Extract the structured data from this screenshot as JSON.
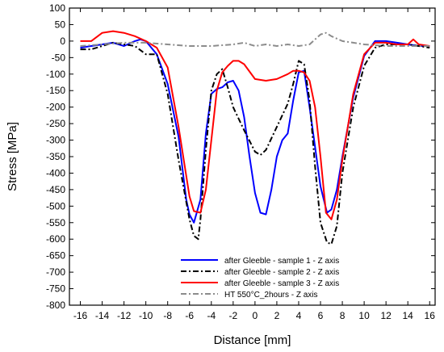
{
  "chart_data": {
    "type": "line",
    "title": "",
    "xlabel": "Distance [mm]",
    "ylabel": "Stress [MPa]",
    "xlim": [
      -17,
      16.5
    ],
    "ylim": [
      -800,
      100
    ],
    "xticks": [
      -16,
      -14,
      -12,
      -10,
      -8,
      -6,
      -4,
      -2,
      0,
      2,
      4,
      6,
      8,
      10,
      12,
      14,
      16
    ],
    "yticks": [
      100,
      50,
      0,
      -50,
      -100,
      -150,
      -200,
      -250,
      -300,
      -350,
      -400,
      -450,
      -500,
      -550,
      -600,
      -650,
      -700,
      -750,
      -800
    ],
    "grid": false,
    "legend_position": "bottom-center",
    "series": [
      {
        "name": "after Gleeble - sample 1 - Z axis",
        "color": "#0000ff",
        "dash": "solid",
        "x": [
          -16,
          -15,
          -14,
          -13,
          -12,
          -11,
          -10.5,
          -10,
          -9,
          -8,
          -7,
          -6.3,
          -6,
          -5.6,
          -5,
          -4.5,
          -4,
          -3.5,
          -3,
          -2.5,
          -2,
          -1.5,
          -1,
          -0.5,
          0,
          0.5,
          1,
          1.5,
          2,
          2.5,
          3,
          3.5,
          4,
          4.5,
          5,
          6,
          6.6,
          7,
          7.5,
          8,
          9,
          10,
          11,
          12,
          13,
          14,
          15,
          16
        ],
        "y": [
          -20,
          -15,
          -10,
          -5,
          -15,
          0,
          5,
          0,
          -40,
          -130,
          -290,
          -480,
          -525,
          -550,
          -480,
          -280,
          -160,
          -145,
          -140,
          -125,
          -120,
          -150,
          -230,
          -350,
          -460,
          -520,
          -525,
          -450,
          -350,
          -300,
          -280,
          -180,
          -95,
          -90,
          -200,
          -440,
          -520,
          -510,
          -450,
          -350,
          -170,
          -45,
          0,
          0,
          -5,
          -10,
          -15,
          -15
        ]
      },
      {
        "name": "after Gleeble - sample 2 - Z axis",
        "color": "#000000",
        "dash": "dashdot",
        "x": [
          -16,
          -15,
          -14,
          -13,
          -12,
          -11,
          -10,
          -9,
          -8,
          -7,
          -6,
          -5.6,
          -5.2,
          -5,
          -4.5,
          -4,
          -3.5,
          -3,
          -2.5,
          -2,
          -1,
          0,
          0.5,
          1,
          2,
          3,
          3.5,
          4,
          4.5,
          5,
          5.5,
          6,
          6.6,
          7,
          7.5,
          8,
          9,
          10,
          11,
          12,
          13,
          14,
          15,
          16
        ],
        "y": [
          -25,
          -25,
          -15,
          -5,
          -10,
          -15,
          -40,
          -40,
          -160,
          -360,
          -540,
          -590,
          -600,
          -540,
          -330,
          -150,
          -100,
          -85,
          -140,
          -200,
          -270,
          -335,
          -345,
          -330,
          -260,
          -190,
          -130,
          -60,
          -70,
          -180,
          -380,
          -550,
          -610,
          -615,
          -560,
          -400,
          -200,
          -75,
          -20,
          -10,
          -10,
          -10,
          -15,
          -20
        ]
      },
      {
        "name": "after Gleeble - sample 3 - Z axis",
        "color": "#ff0000",
        "dash": "solid",
        "x": [
          -16,
          -15,
          -14,
          -13,
          -12,
          -11,
          -10,
          -9,
          -8,
          -7,
          -6,
          -5.6,
          -5,
          -4.5,
          -4,
          -3.5,
          -3,
          -2.5,
          -2,
          -1.5,
          -1,
          0,
          1,
          2,
          3,
          3.5,
          4,
          4.5,
          5,
          5.5,
          6,
          6.5,
          7,
          7.5,
          8,
          9,
          10,
          11,
          12,
          13,
          14,
          14.5,
          15,
          16
        ],
        "y": [
          0,
          0,
          25,
          30,
          25,
          15,
          0,
          -20,
          -80,
          -260,
          -470,
          -515,
          -520,
          -450,
          -300,
          -150,
          -95,
          -75,
          -60,
          -60,
          -70,
          -115,
          -120,
          -115,
          -100,
          -90,
          -90,
          -95,
          -120,
          -200,
          -350,
          -520,
          -540,
          -480,
          -360,
          -160,
          -40,
          -5,
          -5,
          -10,
          -10,
          5,
          -10,
          -15
        ]
      },
      {
        "name": "HT 550°C_2hours - Z axis",
        "color": "#8c8c8c",
        "dash": "dashdot",
        "x": [
          -16,
          -14,
          -12,
          -10,
          -8,
          -6,
          -4,
          -2,
          -1,
          0,
          1,
          2,
          3,
          4,
          5,
          6,
          6.5,
          7,
          8,
          9,
          10,
          12,
          14,
          16
        ],
        "y": [
          -15,
          -10,
          -5,
          -5,
          -10,
          -15,
          -15,
          -10,
          -5,
          -15,
          -10,
          -15,
          -10,
          -15,
          -10,
          20,
          25,
          15,
          0,
          -5,
          -10,
          -15,
          -15,
          -15
        ]
      }
    ]
  }
}
